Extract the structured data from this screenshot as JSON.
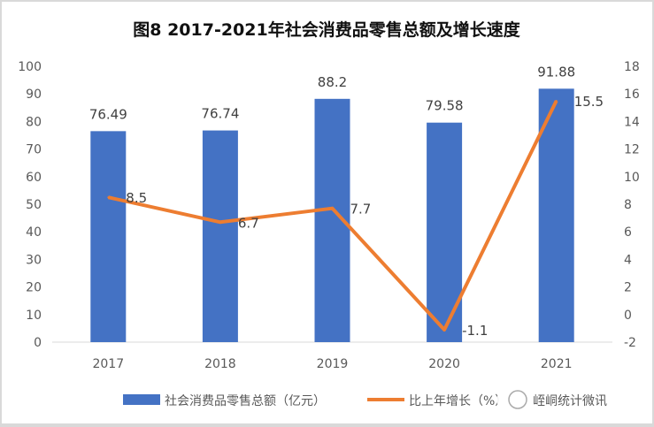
{
  "chart_data": {
    "type": "bar+line",
    "title": "图8  2017-2021年社会消费品零售总额及增长速度",
    "categories": [
      "2017",
      "2018",
      "2019",
      "2020",
      "2021"
    ],
    "series": [
      {
        "name": "社会消费品零售总额（亿元）",
        "type": "bar",
        "axis": "left",
        "color": "#4472C4",
        "values": [
          76.49,
          76.74,
          88.2,
          79.58,
          91.88
        ]
      },
      {
        "name": "比上年增长（%）",
        "type": "line",
        "axis": "right",
        "color": "#ED7D31",
        "values": [
          8.5,
          6.7,
          7.7,
          -1.1,
          15.5
        ]
      }
    ],
    "left_ylim": [
      0,
      100
    ],
    "left_ticks": [
      0,
      10,
      20,
      30,
      40,
      50,
      60,
      70,
      80,
      90,
      100
    ],
    "right_ylim": [
      -2,
      18
    ],
    "right_ticks": [
      -2,
      0,
      2,
      4,
      6,
      8,
      10,
      12,
      14,
      16,
      18
    ],
    "grid": false,
    "legend": "bottom"
  },
  "watermark": "峌峒统计微讯"
}
